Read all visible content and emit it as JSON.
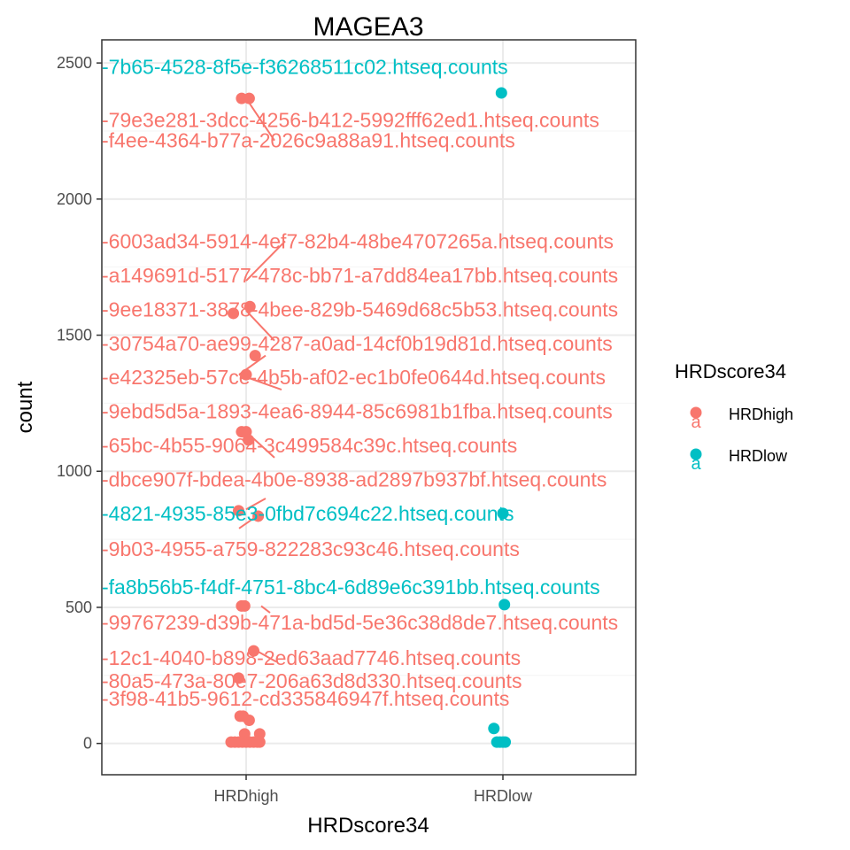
{
  "chart_data": {
    "type": "scatter",
    "title": "MAGEA3",
    "xlabel": "HRDscore34",
    "ylabel": "count",
    "categories": [
      "HRDhigh",
      "HRDlow"
    ],
    "ylim": [
      -115,
      2585
    ],
    "yticks": [
      0,
      500,
      1000,
      1500,
      2000,
      2500
    ],
    "grid": true,
    "legend": {
      "title": "HRDscore34",
      "position": "right",
      "entries": [
        {
          "label": "HRDhigh",
          "key_glyph": "a",
          "color": "#F8766D"
        },
        {
          "label": "HRDlow",
          "key_glyph": "a",
          "color": "#00BFC4"
        }
      ]
    },
    "series": [
      {
        "name": "HRDhigh",
        "color": "#F8766D",
        "points": [
          {
            "x": -0.06,
            "y": 2370
          },
          {
            "x": 0.04,
            "y": 2370
          },
          {
            "x": -0.17,
            "y": 1580
          },
          {
            "x": 0.05,
            "y": 1605
          },
          {
            "x": 0.12,
            "y": 1425
          },
          {
            "x": 0.0,
            "y": 1355
          },
          {
            "x": -0.06,
            "y": 1145
          },
          {
            "x": 0.0,
            "y": 1145
          },
          {
            "x": 0.03,
            "y": 1115
          },
          {
            "x": -0.1,
            "y": 855
          },
          {
            "x": 0.16,
            "y": 835
          },
          {
            "x": -0.06,
            "y": 505
          },
          {
            "x": -0.02,
            "y": 505
          },
          {
            "x": 0.1,
            "y": 340
          },
          {
            "x": -0.1,
            "y": 240
          },
          {
            "x": -0.08,
            "y": 100
          },
          {
            "x": -0.04,
            "y": 100
          },
          {
            "x": 0.04,
            "y": 85
          },
          {
            "x": -0.02,
            "y": 35
          },
          {
            "x": 0.18,
            "y": 35
          },
          {
            "x": -0.2,
            "y": 5
          },
          {
            "x": -0.15,
            "y": 5
          },
          {
            "x": -0.1,
            "y": 5
          },
          {
            "x": -0.05,
            "y": 5
          },
          {
            "x": 0.0,
            "y": 5
          },
          {
            "x": 0.05,
            "y": 5
          },
          {
            "x": 0.1,
            "y": 5
          },
          {
            "x": 0.15,
            "y": 5
          },
          {
            "x": 0.18,
            "y": 5
          }
        ],
        "labels": [
          {
            "text": "-79e3e281-3dcc-4256-b412-5992fff62ed1.htseq.counts",
            "y": 2290,
            "x": 0
          },
          {
            "text": "-f4ee-4364-b77a-2026c9a88a91.htseq.counts",
            "y": 2215,
            "x": 0
          },
          {
            "text": "-6003ad34-5914-4ef7-82b4-48be4707265a.htseq.counts",
            "y": 1845,
            "x": 0
          },
          {
            "text": "-a149691d-5177-478c-bb71-a7dd84ea17bb.htseq.counts",
            "y": 1720,
            "x": 0
          },
          {
            "text": "-9ee18371-3878-4bee-829b-5469d68c5b53.htseq.counts",
            "y": 1595,
            "x": 0
          },
          {
            "text": "-30754a70-ae99-4287-a0ad-14cf0b19d81d.htseq.counts",
            "y": 1470,
            "x": 0
          },
          {
            "text": "-e42325eb-57ce-4b5b-af02-ec1b0fe0644d.htseq.counts",
            "y": 1345,
            "x": 0
          },
          {
            "text": "-9ebd5d5a-1893-4ea6-8944-85c6981b1fba.htseq.counts",
            "y": 1220,
            "x": 0
          },
          {
            "text": "-65bc-4b55-9064-3c499584c39c.htseq.counts",
            "y": 1095,
            "x": 0
          },
          {
            "text": "-dbce907f-bdea-4b0e-8938-ad2897b937bf.htseq.counts",
            "y": 970,
            "x": 0
          },
          {
            "text": "-9b03-4955-a759-822283c93c46.htseq.counts",
            "y": 715,
            "x": 0
          },
          {
            "text": "-99767239-d39b-471a-bd5d-5e36c38d8de7.htseq.counts",
            "y": 445,
            "x": 0
          },
          {
            "text": "-12c1-4040-b898-2ed63aad7746.htseq.counts",
            "y": 315,
            "x": 0
          },
          {
            "text": "-80a5-473a-80e7-206a63d8d330.htseq.counts",
            "y": 230,
            "x": 0
          },
          {
            "text": "-3f98-41b5-9612-cd335846947f.htseq.counts",
            "y": 165,
            "x": 0
          }
        ]
      },
      {
        "name": "HRDlow",
        "color": "#00BFC4",
        "points": [
          {
            "x": -0.02,
            "y": 2390
          },
          {
            "x": 0.0,
            "y": 845
          },
          {
            "x": 0.02,
            "y": 510
          },
          {
            "x": -0.12,
            "y": 55
          },
          {
            "x": -0.08,
            "y": 5
          },
          {
            "x": -0.04,
            "y": 5
          },
          {
            "x": 0.0,
            "y": 5
          },
          {
            "x": 0.03,
            "y": 5
          }
        ],
        "labels": [
          {
            "text": "-7b65-4528-8f5e-f36268511c02.htseq.counts",
            "y": 2485,
            "x": 0
          },
          {
            "text": "-4821-4935-85e3-0fbd7c694c22.htseq.counts",
            "y": 845,
            "x": 0
          },
          {
            "text": "-fa8b56b5-f4df-4751-8bc4-6d89e6c391bb.htseq.counts",
            "y": 575,
            "x": 0
          }
        ]
      }
    ]
  }
}
